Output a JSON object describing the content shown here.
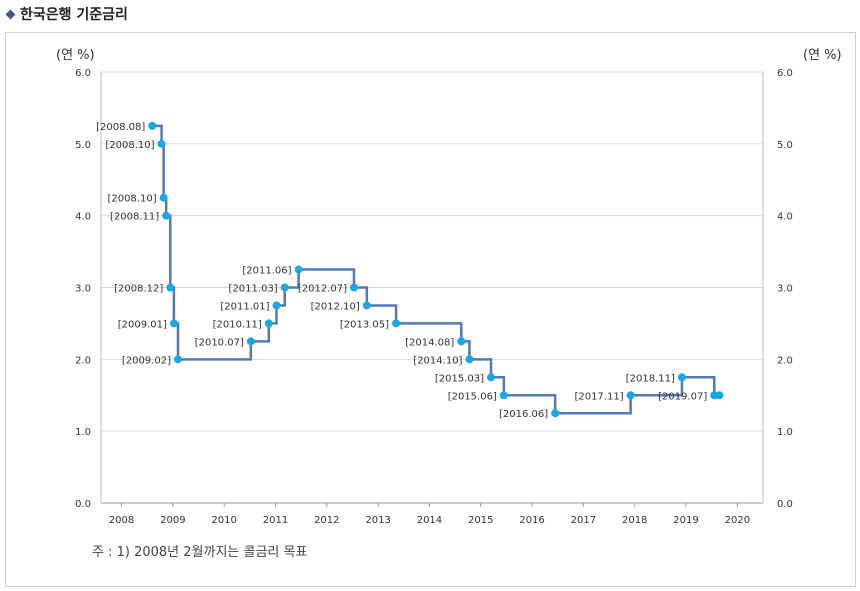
{
  "header": {
    "title": "한국은행 기준금리"
  },
  "note": "주 : 1) 2008년 2월까지는 콜금리 목표",
  "chart_data": {
    "type": "line",
    "step": true,
    "unit_left": "(연 %)",
    "unit_right": "(연 %)",
    "ylim": [
      0,
      6
    ],
    "y_ticks": [
      "0.0",
      "1.0",
      "2.0",
      "3.0",
      "4.0",
      "5.0",
      "6.0"
    ],
    "xlim": [
      2007.6,
      2020.5
    ],
    "x_ticks": [
      "2008",
      "2009",
      "2010",
      "2011",
      "2012",
      "2013",
      "2014",
      "2015",
      "2016",
      "2017",
      "2018",
      "2019",
      "2020"
    ],
    "grid": true,
    "line_color": "#5578b8",
    "marker_color": "#1aa7e8",
    "points": [
      {
        "date": "2008.08",
        "x": 2008.6,
        "y": 5.25
      },
      {
        "date": "2008.10",
        "x": 2008.78,
        "y": 5.0
      },
      {
        "date": "2008.10",
        "x": 2008.82,
        "y": 4.25
      },
      {
        "date": "2008.11",
        "x": 2008.87,
        "y": 4.0
      },
      {
        "date": "2008.12",
        "x": 2008.95,
        "y": 3.0
      },
      {
        "date": "2009.01",
        "x": 2009.02,
        "y": 2.5
      },
      {
        "date": "2009.02",
        "x": 2009.1,
        "y": 2.0
      },
      {
        "date": "2010.07",
        "x": 2010.52,
        "y": 2.25
      },
      {
        "date": "2010.11",
        "x": 2010.87,
        "y": 2.5
      },
      {
        "date": "2011.01",
        "x": 2011.02,
        "y": 2.75
      },
      {
        "date": "2011.03",
        "x": 2011.18,
        "y": 3.0
      },
      {
        "date": "2011.06",
        "x": 2011.45,
        "y": 3.25
      },
      {
        "date": "2012.07",
        "x": 2012.53,
        "y": 3.0
      },
      {
        "date": "2012.10",
        "x": 2012.78,
        "y": 2.75
      },
      {
        "date": "2013.05",
        "x": 2013.35,
        "y": 2.5
      },
      {
        "date": "2014.08",
        "x": 2014.62,
        "y": 2.25
      },
      {
        "date": "2014.10",
        "x": 2014.78,
        "y": 2.0
      },
      {
        "date": "2015.03",
        "x": 2015.2,
        "y": 1.75
      },
      {
        "date": "2015.06",
        "x": 2015.45,
        "y": 1.5
      },
      {
        "date": "2016.06",
        "x": 2016.45,
        "y": 1.25
      },
      {
        "date": "2017.11",
        "x": 2017.92,
        "y": 1.5
      },
      {
        "date": "2018.11",
        "x": 2018.92,
        "y": 1.75
      },
      {
        "date": "2019.07",
        "x": 2019.55,
        "y": 1.5
      },
      {
        "date": "",
        "x": 2019.65,
        "y": 1.5
      }
    ]
  }
}
